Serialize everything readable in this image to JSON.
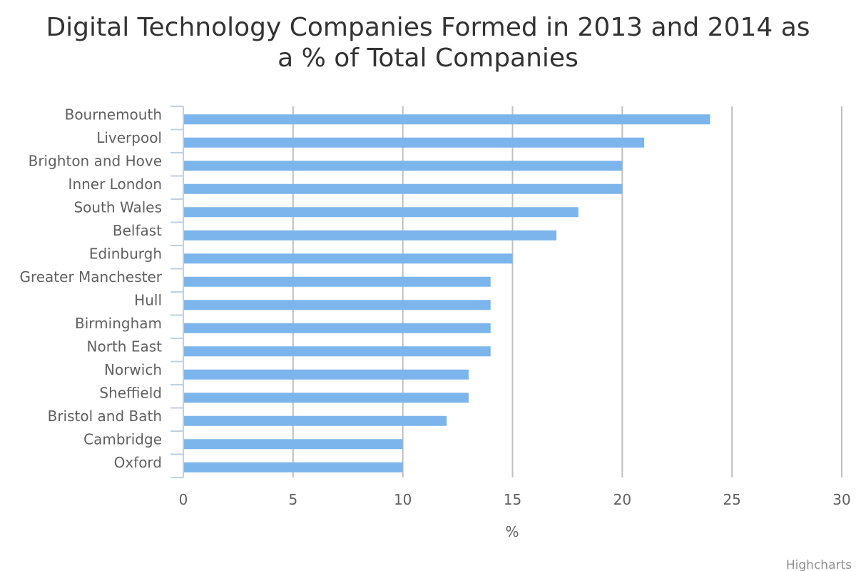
{
  "chart_data": {
    "type": "bar",
    "orientation": "horizontal",
    "title": "Digital Technology Companies Formed in 2013 and 2014 as a % of Total Companies",
    "title_lines": [
      "Digital Technology Companies Formed in 2013 and 2014 as",
      "a % of Total Companies"
    ],
    "categories": [
      "Bournemouth",
      "Liverpool",
      "Brighton and Hove",
      "Inner London",
      "South Wales",
      "Belfast",
      "Edinburgh",
      "Greater Manchester",
      "Hull",
      "Birmingham",
      "North East",
      "Norwich",
      "Sheffield",
      "Bristol and Bath",
      "Cambridge",
      "Oxford"
    ],
    "values": [
      24,
      21,
      20,
      20,
      18,
      17,
      15,
      14,
      14,
      14,
      14,
      13,
      13,
      12,
      10,
      10
    ],
    "xlabel": "",
    "ylabel": "%",
    "value_axis_range": [
      0,
      30
    ],
    "value_axis_ticks": [
      "0",
      "5",
      "10",
      "15",
      "20",
      "25",
      "30"
    ],
    "grid": true,
    "legend": false,
    "bar_color": "#7cb5ec",
    "gridline_color": "#c0c0c0",
    "axis_color": "#c0d0e0"
  },
  "credits": "Highcharts"
}
